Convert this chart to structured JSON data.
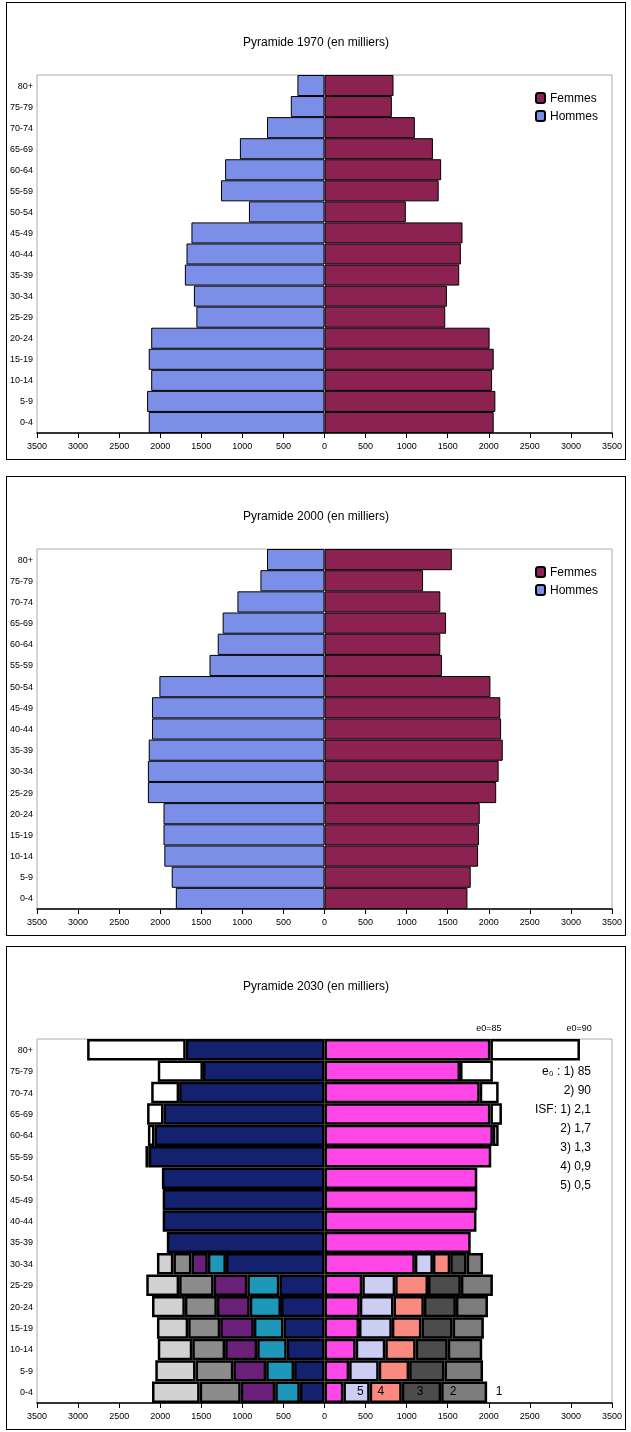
{
  "chart_data": [
    {
      "type": "bar",
      "orientation": "horizontal",
      "stacked": true,
      "title": "Pyramide 1970 (en milliers)",
      "legend": "top right",
      "categories": [
        "80+",
        "75-79",
        "70-74",
        "65-69",
        "60-64",
        "55-59",
        "50-54",
        "45-49",
        "40-44",
        "35-39",
        "30-34",
        "25-29",
        "20-24",
        "15-19",
        "10-14",
        "5-9",
        "0-4"
      ],
      "xlim": [
        -3500,
        3500
      ],
      "xticks": [
        {
          "value": -3500,
          "label": "3500"
        },
        {
          "value": -3000,
          "label": "3000"
        },
        {
          "value": -2500,
          "label": "2500"
        },
        {
          "value": -2000,
          "label": "2000"
        },
        {
          "value": -1500,
          "label": "1500"
        },
        {
          "value": -1000,
          "label": "1000"
        },
        {
          "value": -500,
          "label": "500"
        },
        0,
        500,
        1000,
        1500,
        2000,
        2500,
        3000,
        3500
      ],
      "series": [
        {
          "name": "Femmes",
          "color": "#8b2252",
          "values": [
            840,
            820,
            1100,
            1320,
            1420,
            1390,
            990,
            1680,
            1660,
            1640,
            1490,
            1470,
            2010,
            2060,
            2040,
            2080,
            2060
          ]
        },
        {
          "name": "Hommes",
          "color": "#7b8ee8",
          "values": [
            -330,
            -410,
            -700,
            -1030,
            -1210,
            -1260,
            -920,
            -1620,
            -1680,
            -1700,
            -1590,
            -1560,
            -2110,
            -2140,
            -2110,
            -2160,
            -2140
          ]
        }
      ]
    },
    {
      "type": "bar",
      "orientation": "horizontal",
      "stacked": true,
      "title": "Pyramide 2000 (en milliers)",
      "legend": "top right",
      "categories": [
        "80+",
        "75-79",
        "70-74",
        "65-69",
        "60-64",
        "55-59",
        "50-54",
        "45-49",
        "40-44",
        "35-39",
        "30-34",
        "25-29",
        "20-24",
        "15-19",
        "10-14",
        "5-9",
        "0-4"
      ],
      "xlim": [
        -3500,
        3500
      ],
      "xticks": [
        {
          "value": -3500,
          "label": "3500"
        },
        {
          "value": -3000,
          "label": "3000"
        },
        {
          "value": -2500,
          "label": "2500"
        },
        {
          "value": -2000,
          "label": "2000"
        },
        {
          "value": -1500,
          "label": "1500"
        },
        {
          "value": -1000,
          "label": "1000"
        },
        {
          "value": -500,
          "label": "500"
        },
        0,
        500,
        1000,
        1500,
        2000,
        2500,
        3000,
        3500
      ],
      "series": [
        {
          "name": "Femmes",
          "color": "#8b2252",
          "values": [
            1550,
            1200,
            1410,
            1480,
            1410,
            1430,
            2020,
            2140,
            2150,
            2170,
            2120,
            2090,
            1890,
            1880,
            1870,
            1780,
            1740
          ]
        },
        {
          "name": "Hommes",
          "color": "#7b8ee8",
          "values": [
            -700,
            -780,
            -1060,
            -1240,
            -1300,
            -1400,
            -2010,
            -2100,
            -2100,
            -2140,
            -2150,
            -2150,
            -1960,
            -1960,
            -1950,
            -1860,
            -1810
          ]
        }
      ]
    },
    {
      "type": "bar",
      "orientation": "horizontal",
      "stacked": true,
      "title": "Pyramide 2030 (en milliers)",
      "categories": [
        "80+",
        "75-79",
        "70-74",
        "65-69",
        "60-64",
        "55-59",
        "50-54",
        "45-49",
        "40-44",
        "35-39",
        "30-34",
        "25-29",
        "20-24",
        "15-19",
        "10-14",
        "5-9",
        "0-4"
      ],
      "xlim": [
        -3500,
        3500
      ],
      "xticks": [
        {
          "value": -3500,
          "label": "3500"
        },
        {
          "value": -3000,
          "label": "3000"
        },
        {
          "value": -2500,
          "label": "2500"
        },
        {
          "value": -2000,
          "label": "2000"
        },
        {
          "value": -1500,
          "label": "1500"
        },
        {
          "value": -1000,
          "label": "1000"
        },
        {
          "value": -500,
          "label": "500"
        },
        0,
        500,
        1000,
        1500,
        2000,
        2500,
        3000,
        3500
      ],
      "series": [
        {
          "color": "#13216e",
          "values": [
            -1690,
            -1480,
            -1770,
            -1960,
            -2070,
            -2140,
            -1980,
            -1970,
            -1970,
            -1920,
            -1200,
            -550,
            -530,
            -500,
            -460,
            -370,
            -300
          ]
        },
        {
          "color": "#1e98b8",
          "values": [
            null,
            null,
            null,
            null,
            null,
            null,
            null,
            null,
            null,
            null,
            -220,
            -390,
            -380,
            -360,
            -360,
            -340,
            -300
          ]
        },
        {
          "color": "#6a2078",
          "values": [
            null,
            null,
            null,
            null,
            null,
            null,
            null,
            null,
            null,
            null,
            -200,
            -410,
            -400,
            -410,
            -390,
            -400,
            -420
          ]
        },
        {
          "color": "#8c8c8c",
          "values": [
            null,
            null,
            null,
            null,
            null,
            null,
            null,
            null,
            null,
            null,
            -220,
            -420,
            -390,
            -390,
            -400,
            -460,
            -500
          ]
        },
        {
          "color": "#d2d2d2",
          "values": [
            null,
            null,
            null,
            null,
            null,
            null,
            null,
            null,
            null,
            null,
            -200,
            -400,
            -400,
            -380,
            -420,
            -490,
            -580
          ]
        },
        {
          "color": "#ffffff",
          "values": [
            -1200,
            -550,
            -340,
            -200,
            -80,
            -40,
            null,
            null,
            null,
            null,
            null,
            null,
            null,
            null,
            null,
            null,
            null
          ]
        },
        {
          "color": "#ff46e6",
          "values": [
            2020,
            1650,
            1890,
            2020,
            2050,
            2030,
            1860,
            1860,
            1850,
            1780,
            1100,
            460,
            430,
            420,
            380,
            300,
            230
          ]
        },
        {
          "color": "#cccdf2",
          "values": [
            null,
            null,
            null,
            null,
            null,
            null,
            null,
            null,
            null,
            null,
            220,
            400,
            410,
            400,
            360,
            360,
            320
          ]
        },
        {
          "color": "#fa8a80",
          "values": [
            null,
            null,
            null,
            null,
            null,
            null,
            null,
            null,
            null,
            null,
            210,
            400,
            370,
            360,
            370,
            370,
            390
          ]
        },
        {
          "color": "#4c4c4c",
          "values": [
            null,
            null,
            null,
            null,
            null,
            null,
            null,
            null,
            null,
            null,
            200,
            400,
            390,
            380,
            390,
            430,
            480
          ]
        },
        {
          "color": "#7c7c7c",
          "values": [
            null,
            null,
            null,
            null,
            null,
            null,
            null,
            null,
            null,
            null,
            200,
            390,
            390,
            380,
            420,
            470,
            560
          ]
        },
        {
          "color": "#ffffff",
          "values": [
            1090,
            400,
            230,
            140,
            70,
            null,
            null,
            null,
            null,
            null,
            null,
            null,
            null,
            null,
            null,
            null,
            null
          ]
        }
      ],
      "annotations": [
        "e0=85",
        "e0=90",
        "e₀ : 1) 85",
        "2) 90",
        "ISF: 1) 2,1",
        "2) 1,7",
        "3) 1,3",
        "4) 0,9",
        "5) 0,5",
        "5",
        "4",
        "3",
        "2",
        "1"
      ]
    }
  ]
}
